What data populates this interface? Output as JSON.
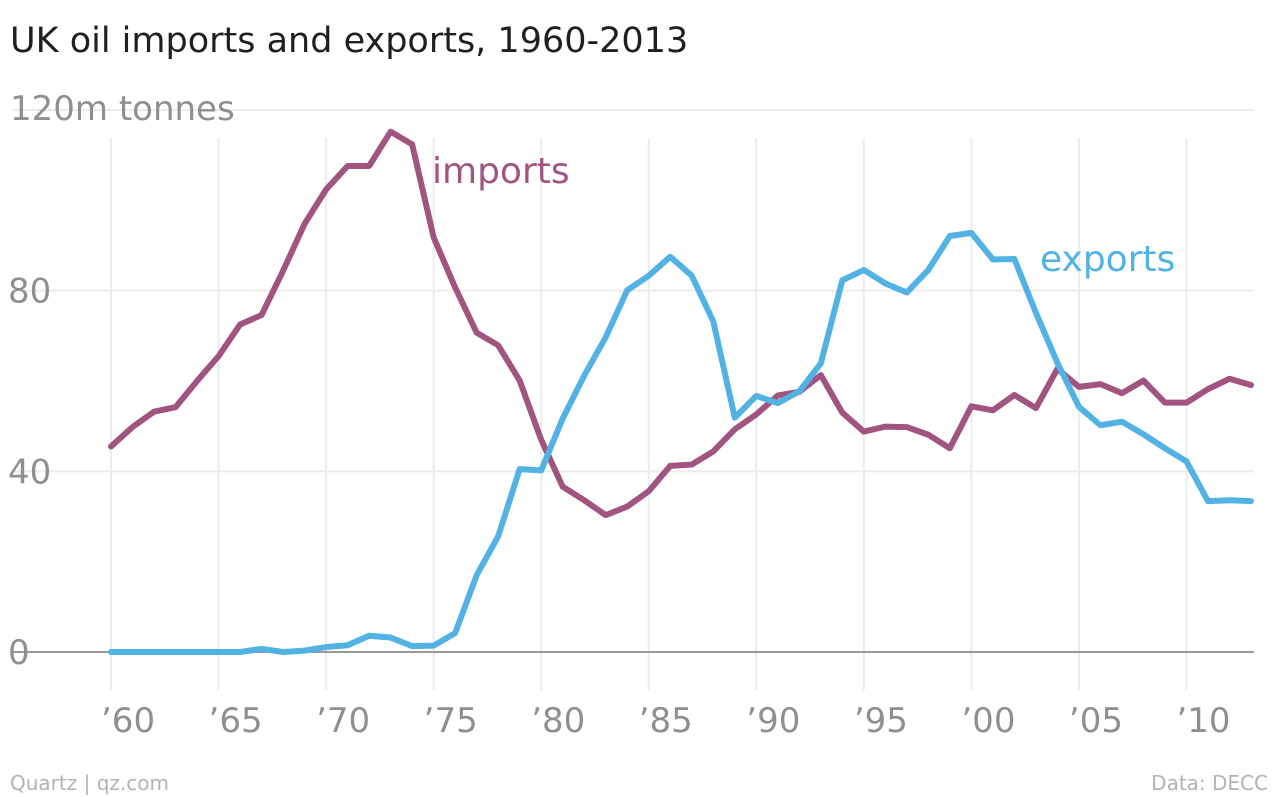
{
  "chart_data": {
    "type": "line",
    "title": "UK oil imports and exports, 1960-2013",
    "unit_label": "120m tonnes",
    "ylim": [
      0,
      120
    ],
    "y_ticks": [
      0,
      40,
      80
    ],
    "x_range": [
      1960,
      2013
    ],
    "x_ticks": [
      {
        "year": 1960,
        "label": "’60"
      },
      {
        "year": 1965,
        "label": "’65"
      },
      {
        "year": 1970,
        "label": "’70"
      },
      {
        "year": 1975,
        "label": "’75"
      },
      {
        "year": 1980,
        "label": "’80"
      },
      {
        "year": 1985,
        "label": "’85"
      },
      {
        "year": 1990,
        "label": "’90"
      },
      {
        "year": 1995,
        "label": "’95"
      },
      {
        "year": 2000,
        "label": "’00"
      },
      {
        "year": 2005,
        "label": "’05"
      },
      {
        "year": 2010,
        "label": "’10"
      }
    ],
    "grid": true,
    "years": [
      1960,
      1961,
      1962,
      1963,
      1964,
      1965,
      1966,
      1967,
      1968,
      1969,
      1970,
      1971,
      1972,
      1973,
      1974,
      1975,
      1976,
      1977,
      1978,
      1979,
      1980,
      1981,
      1982,
      1983,
      1984,
      1985,
      1986,
      1987,
      1988,
      1989,
      1990,
      1991,
      1992,
      1993,
      1994,
      1995,
      1996,
      1997,
      1998,
      1999,
      2000,
      2001,
      2002,
      2003,
      2004,
      2005,
      2006,
      2007,
      2008,
      2009,
      2010,
      2011,
      2012,
      2013
    ],
    "series": [
      {
        "name": "imports",
        "color": "#a0547f",
        "values": [
          45.5,
          49.8,
          53.2,
          54.2,
          60,
          65.5,
          72.5,
          74.6,
          84.4,
          94.8,
          102.4,
          107.6,
          107.6,
          115.2,
          112.4,
          91.8,
          80.7,
          70.7,
          67.9,
          60.1,
          47,
          36.6,
          33.6,
          30.3,
          32.2,
          35.6,
          41.2,
          41.5,
          44.4,
          49.3,
          52.6,
          56.8,
          57.6,
          61.3,
          53,
          48.8,
          49.9,
          49.8,
          48.1,
          45.1,
          54.4,
          53.5,
          56.9,
          54,
          62.7,
          58.7,
          59.3,
          57.3,
          60.1,
          55.2,
          55.2,
          58.2,
          60.5,
          59.1
        ]
      },
      {
        "name": "exports",
        "color": "#52b2e4",
        "values": [
          0,
          0,
          0,
          0,
          0,
          0,
          0,
          0.7,
          0,
          0.3,
          1.1,
          1.5,
          3.6,
          3.2,
          1.3,
          1.4,
          4.2,
          17,
          25.6,
          40.5,
          40.2,
          51.7,
          61.2,
          69.7,
          80.1,
          83.3,
          87.5,
          83.3,
          73.2,
          51.9,
          56.7,
          55.1,
          57.7,
          63.9,
          82.3,
          84.6,
          81.6,
          79.6,
          84.6,
          92.1,
          92.8,
          86.9,
          87,
          75.1,
          64,
          54.3,
          50.2,
          51,
          48.2,
          45.1,
          42.2,
          33.4,
          33.6,
          33.4
        ]
      }
    ],
    "annotations": {
      "imports_label": "imports",
      "exports_label": "exports"
    },
    "source_left": "Quartz | qz.com",
    "source_right": "Data: DECC"
  }
}
